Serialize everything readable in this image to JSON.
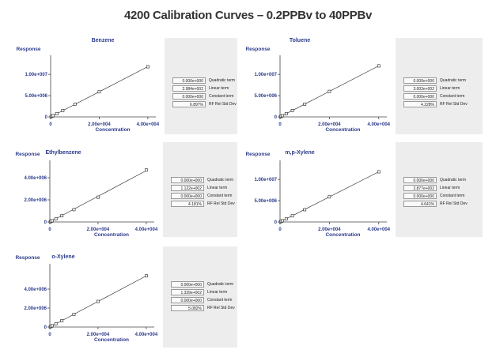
{
  "page_title": "4200 Calibration Curves – 0.2PPBv to 40PPBv",
  "colors": {
    "axis_text": "#2b3a8c",
    "stats_bg": "#ededed",
    "line": "#222222"
  },
  "chart_data": [
    {
      "type": "scatter",
      "title": "Benzene",
      "xlabel": "Concentration",
      "ylabel": "Response",
      "x_ticks": [
        "0",
        "2.00e+004",
        "4.00e+004"
      ],
      "y_ticks": [
        "0",
        "5.00e+006",
        "1.00e+007"
      ],
      "xlim": [
        0,
        42000
      ],
      "ylim": [
        0,
        13000000
      ],
      "x": [
        200,
        500,
        1000,
        2500,
        5000,
        10000,
        20000,
        40000
      ],
      "y": [
        60000,
        150000,
        300000,
        750000,
        1500000,
        3000000,
        5900000,
        11800000
      ],
      "fit_line": true,
      "stats": [
        {
          "value": "0.000e+000",
          "label": "Quadratic term"
        },
        {
          "value": "2.984e+002",
          "label": "Linear term"
        },
        {
          "value": "0.000e+000",
          "label": "Constant term"
        },
        {
          "value": "6.897%",
          "label": "RF Rel Std Dev"
        }
      ]
    },
    {
      "type": "scatter",
      "title": "Toluene",
      "xlabel": "Concentration",
      "ylabel": "Response",
      "x_ticks": [
        "0",
        "2.00e+004",
        "4.00e+004"
      ],
      "y_ticks": [
        "0",
        "5.00e+006",
        "1.00e+007"
      ],
      "xlim": [
        0,
        42000
      ],
      "ylim": [
        0,
        13000000
      ],
      "x": [
        200,
        500,
        1000,
        2500,
        5000,
        10000,
        20000,
        40000
      ],
      "y": [
        60000,
        150000,
        300000,
        750000,
        1500000,
        3000000,
        6000000,
        12000000
      ],
      "fit_line": true,
      "stats": [
        {
          "value": "0.000e+000",
          "label": "Quadratic term"
        },
        {
          "value": "3.003e+002",
          "label": "Linear term"
        },
        {
          "value": "0.000e+000",
          "label": "Constant term"
        },
        {
          "value": "4.228%",
          "label": "RF Rel Std Dev"
        }
      ]
    },
    {
      "type": "scatter",
      "title": "Ethylbenzene",
      "xlabel": "Concentration",
      "ylabel": "Response",
      "x_ticks": [
        "0",
        "2.00e+004",
        "4.00e+004"
      ],
      "y_ticks": [
        "0",
        "2.00e+006",
        "4.00e+006"
      ],
      "xlim": [
        0,
        42000
      ],
      "ylim": [
        0,
        5000000
      ],
      "x": [
        200,
        500,
        1000,
        2500,
        5000,
        10000,
        20000,
        40000
      ],
      "y": [
        22000,
        56000,
        112000,
        280000,
        560000,
        1120000,
        2240000,
        4700000
      ],
      "fit_line": true,
      "stats": [
        {
          "value": "0.000e+000",
          "label": "Quadratic term"
        },
        {
          "value": "1.122e+002",
          "label": "Linear term"
        },
        {
          "value": "0.000e+000",
          "label": "Constant term"
        },
        {
          "value": "4.181%",
          "label": "RF Rel Std Dev"
        }
      ]
    },
    {
      "type": "scatter",
      "title": "m,p-Xylene",
      "xlabel": "Concentration",
      "ylabel": "Response",
      "x_ticks": [
        "0",
        "2.00e+004",
        "4.00e+004"
      ],
      "y_ticks": [
        "0",
        "5.00e+006",
        "1.00e+007"
      ],
      "xlim": [
        0,
        42000
      ],
      "ylim": [
        0,
        13000000
      ],
      "x": [
        200,
        500,
        1000,
        2500,
        5000,
        10000,
        20000,
        40000
      ],
      "y": [
        58000,
        145000,
        290000,
        720000,
        1450000,
        2900000,
        5900000,
        11800000
      ],
      "fit_line": true,
      "stats": [
        {
          "value": "0.000e+000",
          "label": "Quadratic term"
        },
        {
          "value": "2.877e+002",
          "label": "Linear term"
        },
        {
          "value": "0.000e+000",
          "label": "Constant term"
        },
        {
          "value": "4.641%",
          "label": "RF Rel Std Dev"
        }
      ]
    },
    {
      "type": "scatter",
      "title": "o-Xylene",
      "xlabel": "Concentration",
      "ylabel": "Response",
      "x_ticks": [
        "0",
        "2.00e+004",
        "4.00e+004"
      ],
      "y_ticks": [
        "0",
        "2.00e+006",
        "4.00e+006"
      ],
      "xlim": [
        0,
        42000
      ],
      "ylim": [
        0,
        6000000
      ],
      "x": [
        200,
        500,
        1000,
        2500,
        5000,
        10000,
        20000,
        40000
      ],
      "y": [
        27000,
        67000,
        134000,
        335000,
        670000,
        1340000,
        2700000,
        5400000
      ],
      "fit_line": true,
      "stats": [
        {
          "value": "0.000e+000",
          "label": "Quadratic term"
        },
        {
          "value": "1.339e+002",
          "label": "Linear term"
        },
        {
          "value": "0.000e+000",
          "label": "Constant term"
        },
        {
          "value": "5.082%",
          "label": "RF Rel Std Dev"
        }
      ]
    }
  ]
}
